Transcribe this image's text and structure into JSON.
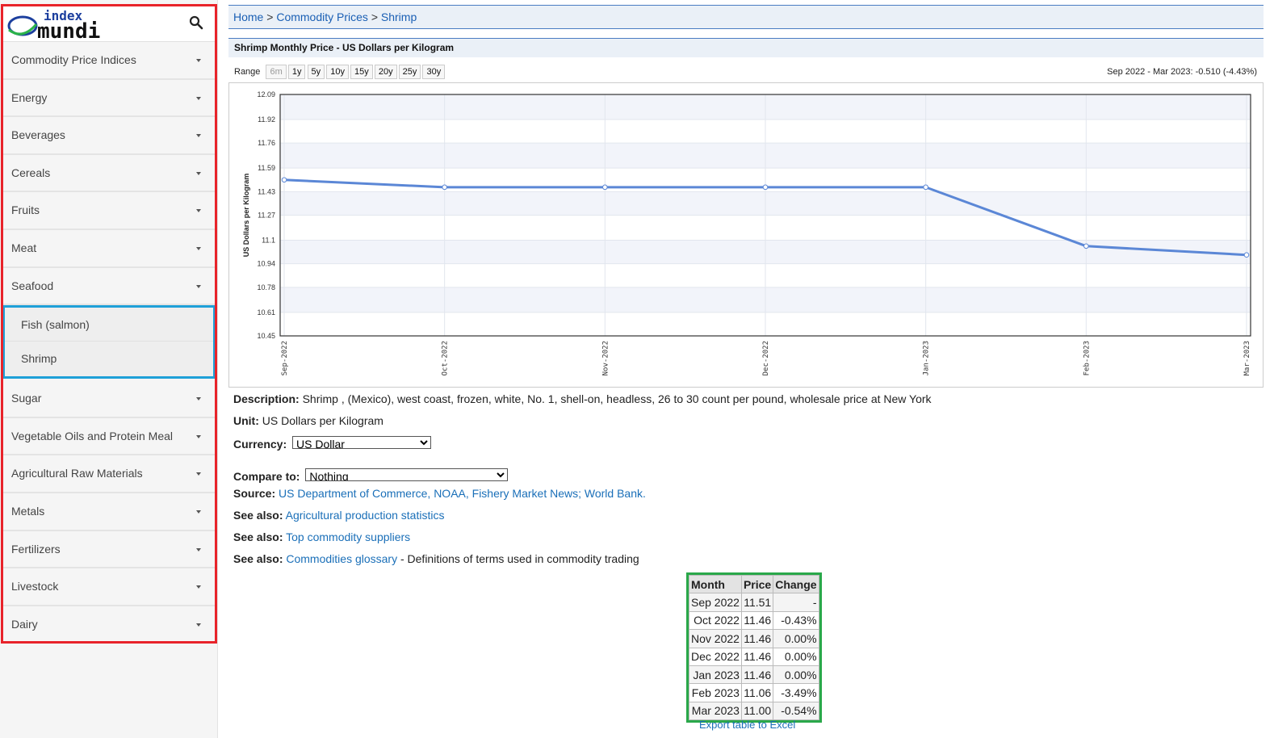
{
  "sidebar": {
    "logo_top": "index",
    "logo_bottom": "mundi",
    "items_before": [
      {
        "label": "Commodity Price Indices"
      },
      {
        "label": "Energy"
      },
      {
        "label": "Beverages"
      },
      {
        "label": "Cereals"
      },
      {
        "label": "Fruits"
      },
      {
        "label": "Meat"
      },
      {
        "label": "Seafood"
      }
    ],
    "seafood_sub": [
      {
        "label": "Fish (salmon)"
      },
      {
        "label": "Shrimp"
      }
    ],
    "items_after": [
      {
        "label": "Sugar"
      },
      {
        "label": "Vegetable Oils and Protein Meal"
      },
      {
        "label": "Agricultural Raw Materials"
      },
      {
        "label": "Metals"
      },
      {
        "label": "Fertilizers"
      },
      {
        "label": "Livestock"
      },
      {
        "label": "Dairy"
      }
    ]
  },
  "breadcrumb": {
    "home": "Home",
    "sep": ">",
    "commodity": "Commodity Prices",
    "current": "Shrimp"
  },
  "chart_header": {
    "title": "Shrimp Monthly Price - US Dollars per Kilogram",
    "range_label": "Range",
    "range_options": [
      "6m",
      "1y",
      "5y",
      "10y",
      "15y",
      "20y",
      "25y",
      "30y"
    ],
    "summary": "Sep 2022 - Mar 2023: -0.510 (-4.43%)"
  },
  "chart_data": {
    "type": "line",
    "title": "",
    "xlabel": "",
    "ylabel": "US Dollars per Kilogram",
    "x": [
      "Sep-2022",
      "Oct-2022",
      "Nov-2022",
      "Dec-2022",
      "Jan-2023",
      "Feb-2023",
      "Mar-2023"
    ],
    "series": [
      {
        "values": [
          11.51,
          11.46,
          11.46,
          11.46,
          11.46,
          11.06,
          11.0
        ]
      }
    ],
    "yticks": [
      "10.45",
      "10.61",
      "10.78",
      "10.94",
      "11.1",
      "11.27",
      "11.43",
      "11.59",
      "11.76",
      "11.92",
      "12.09"
    ],
    "ylim": [
      10.45,
      12.09
    ],
    "grid": true,
    "line_color": "#5b87d6"
  },
  "info": {
    "description_label": "Description:",
    "description": "Shrimp , (Mexico), west coast, frozen, white, No. 1, shell-on, headless, 26 to 30 count per pound, wholesale price at New York",
    "unit_label": "Unit:",
    "unit": "US Dollars per Kilogram",
    "currency_label": "Currency:",
    "currency_value": "US Dollar",
    "compare_label": "Compare to:",
    "compare_value": "Nothing",
    "source_label": "Source:",
    "source_link": "US Department of Commerce, NOAA, Fishery Market News; World Bank.",
    "see_also_label": "See also:",
    "see_also_1": "Agricultural production statistics",
    "see_also_2": "Top commodity suppliers",
    "see_also_3": "Commodities glossary",
    "see_also_3_suffix": " - Definitions of terms used in commodity trading"
  },
  "table": {
    "headers": [
      "Month",
      "Price",
      "Change"
    ],
    "rows": [
      {
        "month": "Sep 2022",
        "price": "11.51",
        "change": "-"
      },
      {
        "month": "Oct 2022",
        "price": "11.46",
        "change": "-0.43%"
      },
      {
        "month": "Nov 2022",
        "price": "11.46",
        "change": "0.00%"
      },
      {
        "month": "Dec 2022",
        "price": "11.46",
        "change": "0.00%"
      },
      {
        "month": "Jan 2023",
        "price": "11.46",
        "change": "0.00%"
      },
      {
        "month": "Feb 2023",
        "price": "11.06",
        "change": "-3.49%"
      },
      {
        "month": "Mar 2023",
        "price": "11.00",
        "change": "-0.54%"
      }
    ],
    "export_label": "Export table to Excel"
  }
}
